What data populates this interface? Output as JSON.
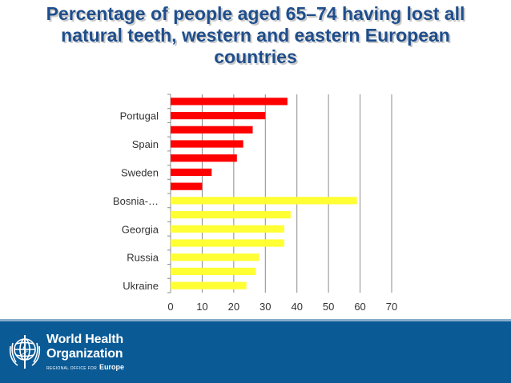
{
  "title": {
    "line1": "Percentage of people aged 65–74 having lost all",
    "line2": "natural teeth, western and eastern European",
    "line3": "countries"
  },
  "chart_data": {
    "type": "bar",
    "orientation": "horizontal",
    "title": "Percentage of people aged 65–74 having lost all natural teeth, western and eastern European countries",
    "xlabel": "",
    "ylabel": "",
    "xlim": [
      0,
      70
    ],
    "xticks": [
      0,
      10,
      20,
      30,
      40,
      50,
      60,
      70
    ],
    "grid": true,
    "categories": [
      "Ukraine",
      "",
      "Russia",
      "",
      "Georgia",
      "",
      "Bosnia-…",
      "",
      "Sweden",
      "",
      "Spain",
      "",
      "Portugal",
      ""
    ],
    "values": [
      24,
      27,
      28,
      36,
      36,
      38,
      59,
      10,
      13,
      21,
      23,
      26,
      30,
      37
    ],
    "colors": [
      "#ffff33",
      "#ffff33",
      "#ffff33",
      "#ffff33",
      "#ffff33",
      "#ffff33",
      "#ffff33",
      "#ff0000",
      "#ff0000",
      "#ff0000",
      "#ff0000",
      "#ff0000",
      "#ff0000",
      "#ff0000"
    ],
    "category_labels_shown": [
      "Ukraine",
      "Russia",
      "Georgia",
      "Bosnia-…",
      "Sweden",
      "Spain",
      "Portugal"
    ]
  },
  "footer": {
    "org_line1": "World Health",
    "org_line2": "Organization",
    "regional": "REGIONAL OFFICE FOR",
    "region": "Europe",
    "emblem_icon": "who-emblem-icon",
    "background": "#0a5a96"
  }
}
